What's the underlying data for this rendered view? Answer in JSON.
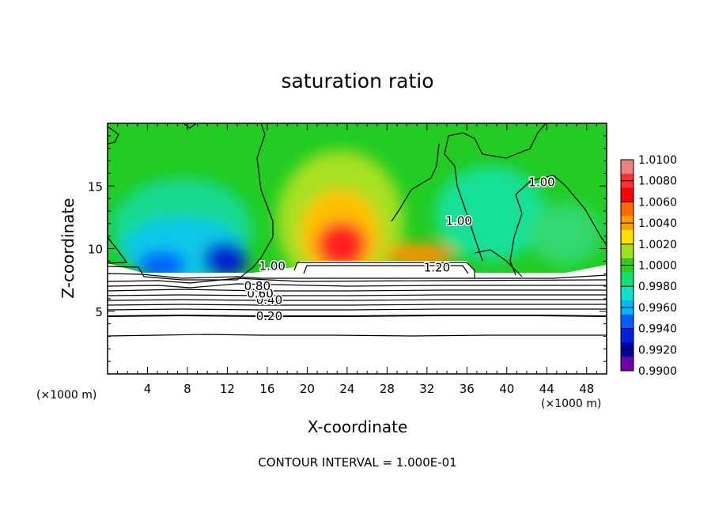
{
  "chart_data": {
    "type": "heatmap",
    "title": "saturation ratio",
    "xlabel": "X-coordinate",
    "ylabel": "Z-coordinate",
    "x_unit": "(×1000 m)",
    "y_unit": "(×1000 m)",
    "xlim": [
      0,
      50
    ],
    "ylim": [
      0,
      20
    ],
    "x_ticks": [
      4,
      8,
      12,
      16,
      20,
      24,
      28,
      32,
      36,
      40,
      44,
      48
    ],
    "y_ticks": [
      5,
      10,
      15
    ],
    "colorbar": {
      "labels": [
        "1.0100",
        "1.0080",
        "1.0060",
        "1.0040",
        "1.0020",
        "1.0000",
        "0.9980",
        "0.9960",
        "0.9940",
        "0.9920",
        "0.9900"
      ],
      "colors": [
        "#f08080",
        "#ff3030",
        "#ff0000",
        "#ff6a00",
        "#ffa000",
        "#ffe000",
        "#a0e020",
        "#2ecc1e",
        "#10e070",
        "#10e0c8",
        "#00b4ff",
        "#0060ff",
        "#0020e0",
        "#0000a0",
        "#7000a8"
      ]
    },
    "contour_labels": [
      {
        "text": "0.20",
        "x": 16.2,
        "z": 4.6
      },
      {
        "text": "0.40",
        "x": 16.2,
        "z": 5.9
      },
      {
        "text": "0.60",
        "x": 15.3,
        "z": 6.4
      },
      {
        "text": "0.80",
        "x": 15.0,
        "z": 7.0
      },
      {
        "text": "1.00",
        "x": 16.5,
        "z": 8.6
      },
      {
        "text": "1.20",
        "x": 33.0,
        "z": 8.5
      },
      {
        "text": "1.00",
        "x": 35.2,
        "z": 12.2
      },
      {
        "text": "1.00",
        "x": 43.5,
        "z": 15.3
      }
    ],
    "contour_interval_text": "CONTOUR INTERVAL =  1.000E-01"
  },
  "colors": {
    "background": "#22cc22",
    "axes": "#000000"
  }
}
